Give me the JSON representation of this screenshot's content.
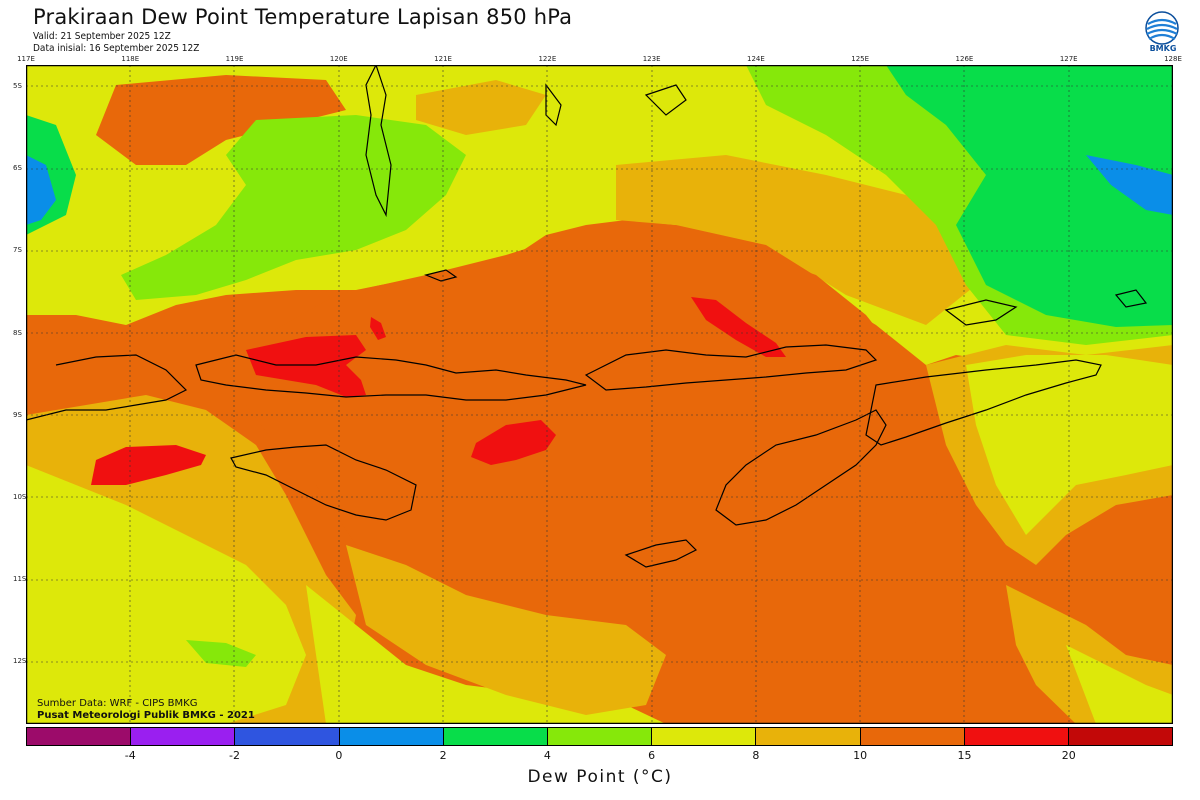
{
  "header": {
    "title": "Prakiraan Dew Point Temperature Lapisan 850 hPa",
    "valid": "Valid: 21 September 2025 12Z",
    "init": "Data inisial: 16 September 2025 12Z"
  },
  "logo": {
    "text": "BMKG"
  },
  "map": {
    "lon_labels": [
      "117E",
      "118E",
      "119E",
      "120E",
      "121E",
      "122E",
      "123E",
      "124E",
      "125E",
      "126E",
      "127E",
      "128E"
    ],
    "lat_labels": [
      "5S",
      "6S",
      "7S",
      "8S",
      "9S",
      "10S",
      "11S",
      "12S"
    ]
  },
  "credits": {
    "source": "Sumber Data: WRF - CIPS BMKG",
    "org": "Pusat Meteorologi Publik BMKG - 2021"
  },
  "colorbar": {
    "title": "Dew Point (°C)",
    "ticks": [
      "-4",
      "-2",
      "0",
      "2",
      "4",
      "6",
      "8",
      "10",
      "15",
      "20"
    ],
    "colors": [
      "#9c0b6a",
      "#9a1ff0",
      "#2f55e0",
      "#0a8ee8",
      "#08dd4a",
      "#86e80a",
      "#dde80a",
      "#e8b20a",
      "#e8680a",
      "#f01010",
      "#c20808"
    ]
  }
}
